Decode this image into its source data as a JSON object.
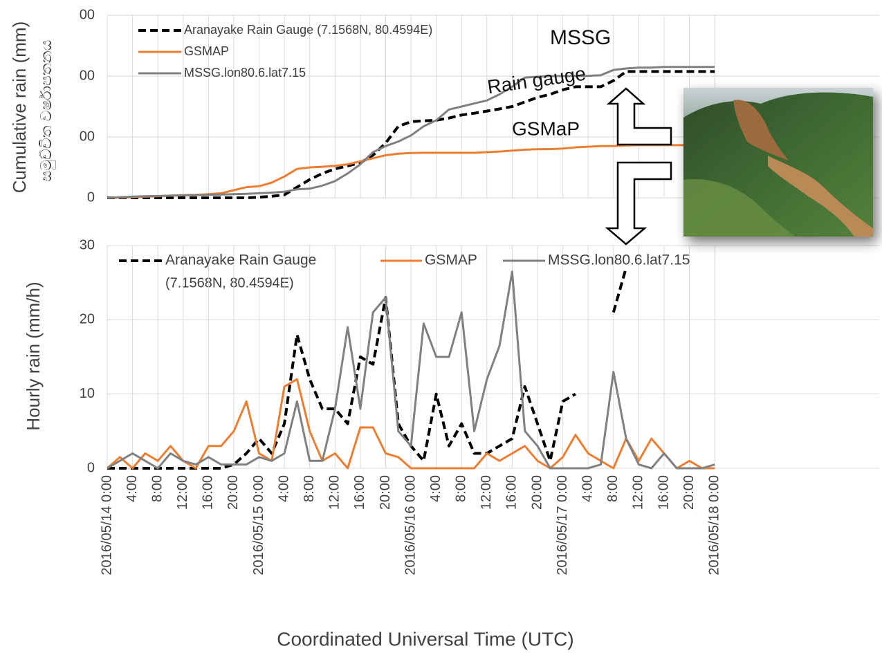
{
  "chart_data": [
    {
      "type": "line",
      "y_label": "Cumulative rain (mm)",
      "y_label_local": "සමුච්චිත වර්ෂාපතනය",
      "x": [
        0,
        2,
        4,
        6,
        8,
        10,
        12,
        14,
        16,
        18,
        20,
        22,
        24,
        26,
        28,
        30,
        32,
        34,
        36,
        38,
        40,
        42,
        44,
        46,
        48,
        50,
        52,
        54,
        56,
        58,
        60,
        62,
        64,
        66,
        68,
        70,
        72,
        74,
        76,
        78,
        80,
        82,
        84,
        86,
        88,
        90,
        92,
        94,
        96
      ],
      "xlim": [
        0,
        122
      ],
      "ylim": [
        0,
        600
      ],
      "yticks": [
        0,
        {
          "value": 200,
          "label": "00"
        },
        {
          "value": 400,
          "label": "00"
        },
        {
          "value": 600,
          "label": "00"
        }
      ],
      "grid": true,
      "series": [
        {
          "name": "Aranayake Rain Gauge (7.1568N, 80.4594E)",
          "color": "#000000",
          "style": "dashed",
          "values": [
            0,
            0,
            0,
            0,
            0,
            0,
            0,
            0,
            0,
            0,
            0,
            0,
            2,
            5,
            10,
            35,
            60,
            80,
            95,
            105,
            115,
            140,
            180,
            235,
            250,
            253,
            255,
            262,
            272,
            278,
            285,
            292,
            300,
            315,
            330,
            340,
            355,
            365,
            365,
            365,
            385,
            415,
            415,
            415,
            415,
            415,
            415,
            415,
            415
          ]
        },
        {
          "name": "GSMAP",
          "color": "#ed7d31",
          "style": "solid",
          "values": [
            0,
            1,
            2,
            4,
            5,
            7,
            9,
            10,
            12,
            15,
            25,
            35,
            38,
            50,
            70,
            95,
            100,
            102,
            105,
            110,
            120,
            130,
            140,
            145,
            147,
            148,
            148,
            148,
            148,
            148,
            150,
            152,
            155,
            158,
            160,
            160,
            162,
            166,
            168,
            170,
            170,
            172,
            173,
            173,
            173,
            173,
            173,
            173,
            173
          ]
        },
        {
          "name": "MSSG.lon80.6.lat7.15",
          "color": "#808080",
          "style": "solid",
          "values": [
            0,
            2,
            4,
            5,
            6,
            7,
            8,
            9,
            10,
            11,
            12,
            13,
            15,
            17,
            20,
            28,
            30,
            40,
            55,
            80,
            110,
            150,
            170,
            185,
            205,
            235,
            255,
            290,
            300,
            310,
            320,
            340,
            365,
            395,
            398,
            400,
            400,
            400,
            401,
            403,
            420,
            425,
            428,
            428,
            430,
            430,
            430,
            430,
            430
          ]
        }
      ],
      "annotations": [
        "MSSG",
        "Rain gauge",
        "GSMaP"
      ]
    },
    {
      "type": "line",
      "y_label": "Hourly rain (mm/h)",
      "x_label": "Coordinated Universal Time (UTC)",
      "legend_note": "(7.1568N, 80.4594E)",
      "x": [
        0,
        2,
        4,
        6,
        8,
        10,
        12,
        14,
        16,
        18,
        20,
        22,
        24,
        26,
        28,
        30,
        32,
        34,
        36,
        38,
        40,
        42,
        44,
        46,
        48,
        50,
        52,
        54,
        56,
        58,
        60,
        62,
        64,
        66,
        68,
        70,
        72,
        74,
        76,
        78,
        80,
        82,
        84,
        86,
        88,
        90,
        92,
        94,
        96
      ],
      "xlim": [
        0,
        122
      ],
      "xticks": [
        {
          "value": 0,
          "label": "2016/05/14 0:00"
        },
        {
          "value": 4,
          "label": "4:00"
        },
        {
          "value": 8,
          "label": "8:00"
        },
        {
          "value": 12,
          "label": "12:00"
        },
        {
          "value": 16,
          "label": "16:00"
        },
        {
          "value": 20,
          "label": "20:00"
        },
        {
          "value": 24,
          "label": "2016/05/15 0:00"
        },
        {
          "value": 28,
          "label": "4:00"
        },
        {
          "value": 32,
          "label": "8:00"
        },
        {
          "value": 36,
          "label": "12:00"
        },
        {
          "value": 40,
          "label": "16:00"
        },
        {
          "value": 44,
          "label": "20:00"
        },
        {
          "value": 48,
          "label": "2016/05/16 0:00"
        },
        {
          "value": 52,
          "label": "4:00"
        },
        {
          "value": 56,
          "label": "8:00"
        },
        {
          "value": 60,
          "label": "12:00"
        },
        {
          "value": 64,
          "label": "16:00"
        },
        {
          "value": 68,
          "label": "20:00"
        },
        {
          "value": 72,
          "label": "2016/05/17 0:00"
        },
        {
          "value": 76,
          "label": "4:00"
        },
        {
          "value": 80,
          "label": "8:00"
        },
        {
          "value": 84,
          "label": "12:00"
        },
        {
          "value": 88,
          "label": "16:00"
        },
        {
          "value": 92,
          "label": "20:00"
        },
        {
          "value": 96,
          "label": "2016/05/18 0:00"
        }
      ],
      "ylim": [
        0,
        30
      ],
      "yticks": [
        0,
        10,
        20,
        30
      ],
      "grid": true,
      "series": [
        {
          "name": "Aranayake Rain Gauge",
          "color": "#000000",
          "style": "dashed",
          "values": [
            0,
            0,
            0,
            0,
            0,
            0,
            0,
            0,
            0,
            0,
            0.5,
            2,
            4,
            2,
            6,
            18,
            12,
            8,
            8,
            6,
            15,
            14,
            23,
            6,
            3,
            1,
            10,
            3,
            6,
            2,
            2,
            3,
            4,
            11,
            6,
            1,
            9,
            10,
            null,
            null,
            21,
            27,
            null,
            null,
            null,
            null,
            null,
            null,
            null
          ]
        },
        {
          "name": "GSMAP",
          "color": "#ed7d31",
          "style": "solid",
          "values": [
            0,
            1.5,
            0,
            2,
            1,
            3,
            1,
            0,
            3,
            3,
            5,
            9,
            2,
            1,
            11,
            12,
            5,
            1,
            2,
            0,
            5.5,
            5.5,
            2,
            1.5,
            0,
            0,
            0,
            0,
            0,
            0,
            2,
            1,
            2,
            3,
            1,
            0,
            1.5,
            4.5,
            2,
            1,
            0,
            4,
            1,
            4,
            2,
            0,
            1,
            0,
            0
          ]
        },
        {
          "name": "MSSG.lon80.6.lat7.15",
          "color": "#808080",
          "style": "solid",
          "values": [
            0,
            1,
            2,
            1,
            0,
            2,
            1,
            0.5,
            1.5,
            0.5,
            0.5,
            0.5,
            1.5,
            1,
            2,
            9,
            1,
            1,
            8,
            19,
            8,
            21,
            23,
            5,
            3,
            19.5,
            15,
            15,
            21,
            5,
            12,
            16.5,
            26.5,
            5,
            3,
            0,
            0,
            0,
            0,
            0.5,
            13,
            4,
            0.5,
            0,
            2,
            0,
            0,
            0,
            0.5
          ]
        }
      ]
    }
  ]
}
